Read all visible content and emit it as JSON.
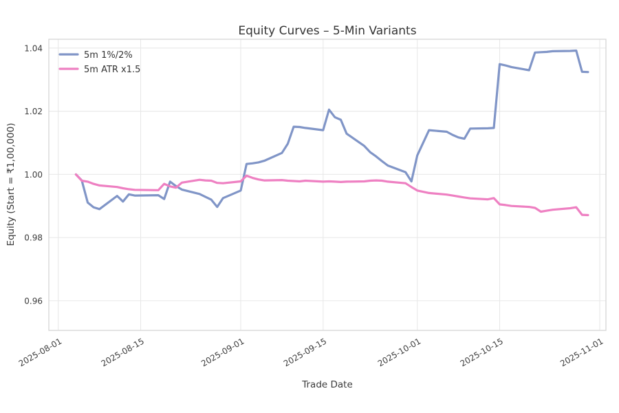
{
  "chart_data": {
    "type": "line",
    "title": "Equity Curves – 5-Min Variants",
    "xlabel": "Trade Date",
    "ylabel": "Equity (Start = ₹1,00,000)",
    "grid": true,
    "legend_position": "upper left",
    "y_ticks": [
      1.04,
      1.02,
      1.0,
      0.98,
      0.96
    ],
    "x_ticks": [
      "2025-08-01",
      "2025-08-15",
      "2025-09-01",
      "2025-09-15",
      "2025-10-01",
      "2025-10-15",
      "2025-11-01"
    ],
    "ylim": [
      0.9506,
      1.0428
    ],
    "x_domain_days_from_2025_08_01": [
      -1.6,
      93.05
    ],
    "dates": [
      "2025-08-04",
      "2025-08-05",
      "2025-08-06",
      "2025-08-07",
      "2025-08-08",
      "2025-08-11",
      "2025-08-12",
      "2025-08-13",
      "2025-08-14",
      "2025-08-18",
      "2025-08-19",
      "2025-08-20",
      "2025-08-21",
      "2025-08-22",
      "2025-08-25",
      "2025-08-26",
      "2025-08-27",
      "2025-08-28",
      "2025-08-29",
      "2025-09-01",
      "2025-09-02",
      "2025-09-03",
      "2025-09-04",
      "2025-09-05",
      "2025-09-08",
      "2025-09-09",
      "2025-09-10",
      "2025-09-11",
      "2025-09-12",
      "2025-09-15",
      "2025-09-16",
      "2025-09-17",
      "2025-09-18",
      "2025-09-19",
      "2025-09-22",
      "2025-09-23",
      "2025-09-24",
      "2025-09-25",
      "2025-09-26",
      "2025-09-29",
      "2025-09-30",
      "2025-10-01",
      "2025-10-03",
      "2025-10-06",
      "2025-10-07",
      "2025-10-08",
      "2025-10-09",
      "2025-10-10",
      "2025-10-13",
      "2025-10-14",
      "2025-10-15",
      "2025-10-16",
      "2025-10-17",
      "2025-10-20",
      "2025-10-21",
      "2025-10-22",
      "2025-10-23",
      "2025-10-24",
      "2025-10-27",
      "2025-10-28",
      "2025-10-29",
      "2025-10-30"
    ],
    "series": [
      {
        "name": "5m 1%/2%",
        "color": "#8095c7",
        "values": [
          1.0,
          0.9981,
          0.9911,
          0.9896,
          0.989,
          0.9932,
          0.9914,
          0.9937,
          0.9933,
          0.9934,
          0.9922,
          0.9977,
          0.9963,
          0.9952,
          0.9938,
          0.9929,
          0.992,
          0.9897,
          0.9925,
          0.9949,
          1.0033,
          1.0035,
          1.0038,
          1.0043,
          1.0068,
          1.0097,
          1.0151,
          1.015,
          1.0147,
          1.014,
          1.0205,
          1.0181,
          1.0173,
          1.0129,
          1.009,
          1.007,
          1.0057,
          1.0042,
          1.0028,
          1.0007,
          0.9978,
          1.006,
          1.014,
          1.0135,
          1.0125,
          1.0117,
          1.0113,
          1.0145,
          1.0146,
          1.0147,
          1.0349,
          1.0345,
          1.034,
          1.033,
          1.0386,
          1.0387,
          1.0388,
          1.039,
          1.0391,
          1.0392,
          1.0325,
          1.0324
        ]
      },
      {
        "name": "5m ATR x1.5",
        "color": "#ee80c2",
        "values": [
          1.0,
          0.998,
          0.9977,
          0.997,
          0.9965,
          0.996,
          0.9956,
          0.9953,
          0.9951,
          0.995,
          0.997,
          0.9962,
          0.9958,
          0.9974,
          0.9983,
          0.9981,
          0.998,
          0.9973,
          0.9972,
          0.9978,
          0.9996,
          0.9989,
          0.9984,
          0.9981,
          0.9982,
          0.998,
          0.9979,
          0.9978,
          0.998,
          0.9977,
          0.9978,
          0.9977,
          0.9976,
          0.9977,
          0.9978,
          0.998,
          0.9981,
          0.998,
          0.9977,
          0.9972,
          0.996,
          0.9949,
          0.9941,
          0.9936,
          0.9933,
          0.993,
          0.9927,
          0.9924,
          0.9921,
          0.9925,
          0.9905,
          0.9903,
          0.99,
          0.9897,
          0.9894,
          0.9882,
          0.9885,
          0.9888,
          0.9893,
          0.9896,
          0.9872,
          0.9871
        ]
      }
    ],
    "colors": {
      "grid": "#e8e8e8",
      "spine": "#d5d5d5",
      "title_text": "#333333",
      "tick_text": "#3d3d3d",
      "background": "#ffffff"
    }
  }
}
